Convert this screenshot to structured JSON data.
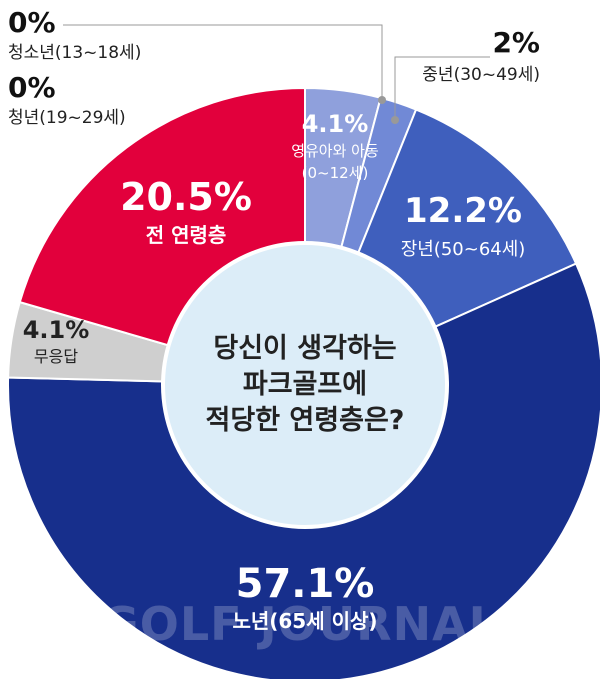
{
  "chart_data": {
    "type": "pie",
    "title": "당신이 생각하는 파크골프에 적당한 연령층은?",
    "center_lines": [
      "당신이 생각하는",
      "파크골프에",
      "적당한 연령층은?"
    ],
    "slices": [
      {
        "label": "영유아와 아동",
        "sublabel": "(0~12세)",
        "value": 4.1,
        "display": "4.1%",
        "color": "#8fa0dc"
      },
      {
        "label": "중년(30~49세)",
        "value": 2,
        "display": "2%",
        "color": "#7189d6"
      },
      {
        "label": "장년(50~64세)",
        "value": 12.2,
        "display": "12.2%",
        "color": "#3f5fbd"
      },
      {
        "label": "노년(65세 이상)",
        "value": 57.1,
        "display": "57.1%",
        "color": "#172f8c"
      },
      {
        "label": "무응답",
        "value": 4.1,
        "display": "4.1%",
        "color": "#cfcfcf"
      },
      {
        "label": "전 연령층",
        "value": 20.5,
        "display": "20.5%",
        "color": "#e2003c"
      },
      {
        "label": "청소년(13~18세)",
        "value": 0,
        "display": "0%",
        "color": "#e2003c"
      },
      {
        "label": "청년(19~29세)",
        "value": 0,
        "display": "0%",
        "color": "#e2003c"
      }
    ]
  },
  "watermark": "GOLF JOURNAL"
}
